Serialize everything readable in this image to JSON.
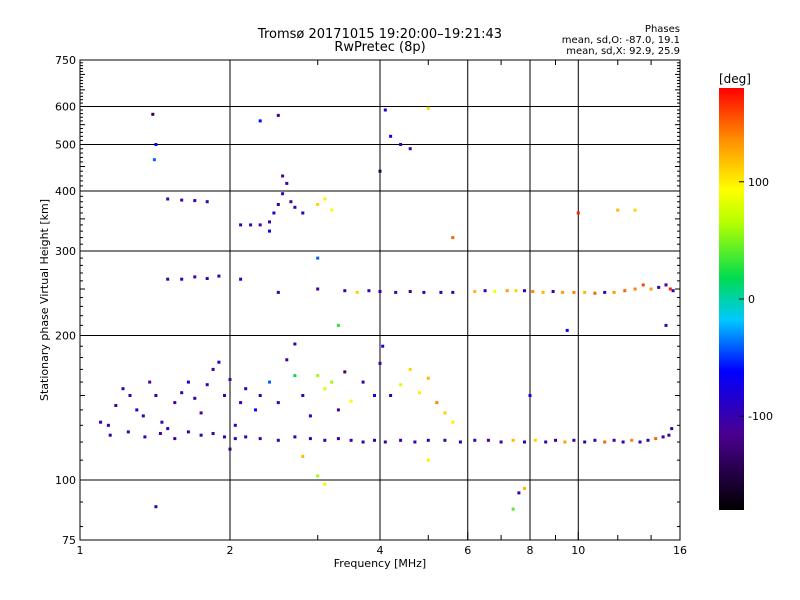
{
  "chart_data": {
    "type": "scatter",
    "title": "Tromsø 20171015 19:20:00–19:21:43",
    "subtitle": "RwPretec (8p)",
    "xlabel": "Frequency [MHz]",
    "ylabel": "Stationary phase Virtual Height [km]",
    "x_scale": "log",
    "y_scale": "log",
    "xlim": [
      1,
      16
    ],
    "ylim": [
      75,
      750
    ],
    "x_ticks": [
      1,
      2,
      4,
      6,
      8,
      10,
      16
    ],
    "x_tick_labels": [
      "1",
      "2",
      "4",
      "6",
      "8",
      "10",
      "16"
    ],
    "x_minor_ticks": [
      3,
      5,
      7,
      9,
      12,
      14
    ],
    "y_ticks": [
      75,
      100,
      200,
      300,
      400,
      500,
      600,
      750
    ],
    "y_tick_labels": [
      "75",
      "100",
      "200",
      "300",
      "400",
      "500",
      "600",
      "750"
    ],
    "grid": true,
    "phases": {
      "header": "Phases",
      "line_o": "mean, sd,O: -87.0, 19.1",
      "line_x": "mean, sd,X:  92.9, 25.9"
    },
    "colorbar": {
      "label": "[deg]",
      "range": [
        -180,
        180
      ],
      "ticks": [
        100,
        0,
        -100
      ],
      "tick_labels": [
        "100",
        "0",
        "-100"
      ]
    },
    "series": [
      {
        "points": [
          [
            1.1,
            132,
            -95
          ],
          [
            1.14,
            130,
            -100
          ],
          [
            1.18,
            143,
            -110
          ],
          [
            1.22,
            155,
            -92
          ],
          [
            1.26,
            150,
            -105
          ],
          [
            1.3,
            140,
            -88
          ],
          [
            1.34,
            136,
            -98
          ],
          [
            1.38,
            160,
            -115
          ],
          [
            1.42,
            150,
            -95
          ],
          [
            1.46,
            132,
            -100
          ],
          [
            1.5,
            128,
            -90
          ],
          [
            1.55,
            145,
            -108
          ],
          [
            1.6,
            152,
            -98
          ],
          [
            1.65,
            160,
            -85
          ],
          [
            1.7,
            148,
            -100
          ],
          [
            1.75,
            138,
            -112
          ],
          [
            1.8,
            158,
            -95
          ],
          [
            1.85,
            170,
            -105
          ],
          [
            1.9,
            176,
            -80
          ],
          [
            1.95,
            150,
            -98
          ],
          [
            2.0,
            162,
            -110
          ],
          [
            2.05,
            130,
            -95
          ],
          [
            2.1,
            145,
            -100
          ],
          [
            2.15,
            155,
            -90
          ],
          [
            2.25,
            140,
            -60
          ],
          [
            2.3,
            150,
            -100
          ],
          [
            2.4,
            160,
            -40
          ],
          [
            2.5,
            145,
            -95
          ],
          [
            2.6,
            178,
            -105
          ],
          [
            2.7,
            165,
            20
          ],
          [
            2.8,
            150,
            -100
          ],
          [
            2.9,
            136,
            -90
          ],
          [
            3.0,
            165,
            60
          ],
          [
            3.1,
            155,
            80
          ],
          [
            3.2,
            160,
            60
          ],
          [
            3.3,
            140,
            -110
          ],
          [
            3.4,
            168,
            -130
          ],
          [
            3.5,
            146,
            90
          ],
          [
            3.7,
            160,
            -100
          ],
          [
            3.9,
            150,
            -80
          ],
          [
            4.0,
            175,
            -105
          ],
          [
            4.05,
            190,
            -90
          ],
          [
            4.2,
            150,
            -100
          ],
          [
            4.4,
            158,
            80
          ],
          [
            4.6,
            170,
            110
          ],
          [
            4.8,
            152,
            100
          ],
          [
            5.0,
            163,
            120
          ],
          [
            5.2,
            145,
            140
          ],
          [
            5.4,
            138,
            110
          ],
          [
            5.6,
            132,
            100
          ]
        ]
      },
      {
        "points": [
          [
            1.15,
            124,
            -100
          ],
          [
            1.25,
            126,
            -105
          ],
          [
            1.35,
            123,
            -95
          ],
          [
            1.45,
            125,
            -110
          ],
          [
            1.55,
            122,
            -100
          ],
          [
            1.65,
            126,
            -92
          ],
          [
            1.75,
            124,
            -100
          ],
          [
            1.85,
            125,
            -108
          ],
          [
            1.95,
            123,
            -95
          ],
          [
            2.05,
            122,
            -100
          ],
          [
            2.15,
            123,
            -90
          ],
          [
            2.3,
            122,
            -105
          ],
          [
            2.5,
            121,
            -98
          ],
          [
            2.7,
            123,
            -100
          ],
          [
            2.9,
            122,
            -95
          ],
          [
            3.1,
            121,
            -100
          ],
          [
            3.3,
            122,
            -110
          ],
          [
            3.5,
            121,
            -100
          ],
          [
            3.7,
            120,
            -95
          ],
          [
            3.9,
            121,
            -100
          ],
          [
            4.1,
            120,
            -105
          ],
          [
            4.4,
            121,
            -98
          ],
          [
            4.7,
            120,
            -100
          ],
          [
            5.0,
            121,
            -95
          ],
          [
            5.4,
            121,
            -100
          ],
          [
            5.8,
            120,
            -90
          ],
          [
            6.2,
            121,
            -100
          ],
          [
            6.6,
            121,
            -110
          ],
          [
            7.0,
            120,
            -100
          ],
          [
            7.4,
            121,
            120
          ],
          [
            7.8,
            120,
            -95
          ],
          [
            8.2,
            121,
            110
          ],
          [
            8.6,
            120,
            -100
          ],
          [
            9.0,
            121,
            -100
          ],
          [
            9.4,
            120,
            130
          ],
          [
            9.8,
            121,
            -100
          ],
          [
            10.3,
            120,
            -95
          ],
          [
            10.8,
            121,
            -100
          ],
          [
            11.3,
            120,
            150
          ],
          [
            11.8,
            121,
            -100
          ],
          [
            12.3,
            120,
            -100
          ],
          [
            12.8,
            121,
            140
          ],
          [
            13.3,
            120,
            -95
          ],
          [
            13.8,
            121,
            -100
          ],
          [
            14.3,
            122,
            150
          ],
          [
            14.8,
            123,
            -100
          ],
          [
            15.2,
            124,
            -105
          ],
          [
            15.4,
            128,
            -95
          ]
        ]
      },
      {
        "points": [
          [
            1.5,
            262,
            -100
          ],
          [
            1.6,
            262,
            -90
          ],
          [
            1.7,
            265,
            -110
          ],
          [
            1.8,
            263,
            -95
          ],
          [
            1.9,
            266,
            -100
          ],
          [
            2.1,
            262,
            -80
          ],
          [
            2.5,
            246,
            -100
          ],
          [
            3.0,
            250,
            -110
          ],
          [
            3.4,
            248,
            -100
          ],
          [
            3.6,
            246,
            110
          ],
          [
            3.8,
            248,
            -100
          ],
          [
            4.0,
            247,
            -95
          ],
          [
            4.3,
            246,
            -100
          ],
          [
            4.6,
            247,
            -110
          ],
          [
            4.9,
            246,
            -100
          ],
          [
            5.3,
            246,
            -95
          ],
          [
            5.6,
            246,
            -100
          ],
          [
            6.2,
            247,
            120
          ],
          [
            6.5,
            248,
            -100
          ],
          [
            6.8,
            247,
            90
          ],
          [
            7.2,
            248,
            130
          ],
          [
            7.5,
            248,
            110
          ],
          [
            7.8,
            248,
            -100
          ],
          [
            8.1,
            247,
            140
          ],
          [
            8.5,
            246,
            120
          ],
          [
            8.9,
            247,
            -100
          ],
          [
            9.3,
            246,
            130
          ],
          [
            9.8,
            246,
            140
          ],
          [
            10.3,
            246,
            120
          ],
          [
            10.8,
            245,
            150
          ],
          [
            11.3,
            246,
            -100
          ],
          [
            11.8,
            246,
            130
          ],
          [
            12.4,
            248,
            150
          ],
          [
            13.0,
            250,
            140
          ],
          [
            13.5,
            255,
            160
          ],
          [
            14.0,
            250,
            130
          ],
          [
            14.5,
            252,
            -100
          ],
          [
            15.0,
            255,
            -110
          ],
          [
            15.3,
            250,
            170
          ],
          [
            15.5,
            248,
            -100
          ]
        ]
      },
      {
        "points": [
          [
            1.5,
            385,
            -100
          ],
          [
            1.6,
            383,
            -110
          ],
          [
            1.7,
            382,
            -95
          ],
          [
            1.8,
            380,
            -100
          ],
          [
            2.1,
            340,
            -95
          ],
          [
            2.2,
            340,
            -100
          ],
          [
            2.3,
            340,
            -110
          ],
          [
            2.4,
            345,
            -100
          ],
          [
            2.45,
            360,
            -80
          ],
          [
            2.5,
            375,
            -100
          ],
          [
            2.55,
            395,
            -95
          ],
          [
            2.6,
            415,
            -110
          ],
          [
            2.65,
            380,
            -120
          ],
          [
            2.7,
            370,
            -100
          ],
          [
            2.8,
            360,
            -90
          ],
          [
            3.0,
            375,
            110
          ],
          [
            3.1,
            385,
            100
          ],
          [
            3.2,
            365,
            90
          ],
          [
            2.4,
            330,
            -60
          ],
          [
            2.55,
            430,
            -115
          ]
        ]
      },
      {
        "points": [
          [
            1.4,
            578,
            -140
          ],
          [
            1.42,
            500,
            -60
          ],
          [
            1.41,
            465,
            -40
          ],
          [
            1.42,
            88,
            -100
          ],
          [
            2.3,
            560,
            -60
          ],
          [
            2.5,
            575,
            -120
          ],
          [
            4.0,
            440,
            -150
          ],
          [
            4.1,
            590,
            -90
          ],
          [
            4.2,
            520,
            -80
          ],
          [
            4.4,
            500,
            -100
          ],
          [
            4.6,
            490,
            -110
          ],
          [
            5.0,
            595,
            110
          ],
          [
            5.6,
            320,
            150
          ],
          [
            10.0,
            360,
            170
          ],
          [
            12.0,
            365,
            120
          ],
          [
            13.0,
            365,
            110
          ],
          [
            3.0,
            102,
            60
          ],
          [
            3.1,
            98,
            100
          ],
          [
            2.8,
            112,
            120
          ],
          [
            2.0,
            116,
            -130
          ],
          [
            7.6,
            94,
            -100
          ],
          [
            7.8,
            96,
            120
          ],
          [
            7.4,
            87,
            40
          ],
          [
            5.0,
            110,
            100
          ],
          [
            8.0,
            150,
            -80
          ],
          [
            9.5,
            205,
            -60
          ],
          [
            15.0,
            210,
            -100
          ],
          [
            3.3,
            210,
            30
          ],
          [
            3.0,
            290,
            -40
          ],
          [
            2.7,
            192,
            -100
          ]
        ]
      }
    ]
  }
}
